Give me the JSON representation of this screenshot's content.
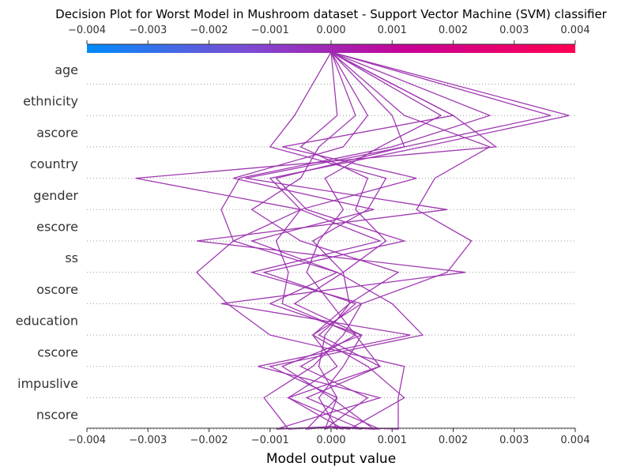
{
  "chart_data": {
    "type": "line",
    "title": "Decision Plot for Worst Model in Mushroom dataset - Support Vector Machine (SVM) classifier",
    "xlabel": "Model output value",
    "ylabel": "",
    "xlim": [
      -0.004,
      0.004
    ],
    "x_ticks": [
      "−0.004",
      "−0.003",
      "−0.002",
      "−0.001",
      "0.000",
      "0.001",
      "0.002",
      "0.003",
      "0.004"
    ],
    "x_tick_values": [
      -0.004,
      -0.003,
      -0.002,
      -0.001,
      0.0,
      0.001,
      0.002,
      0.003,
      0.004
    ],
    "features": [
      "age",
      "ethnicity",
      "ascore",
      "country",
      "gender",
      "escore",
      "ss",
      "oscore",
      "education",
      "cscore",
      "impuslive",
      "nscore"
    ],
    "base_value": 0.0,
    "colorbar": {
      "range": [
        -0.004,
        0.004
      ],
      "colors": [
        "#008bfb",
        "#7d4bd3",
        "#c80095",
        "#ff0051"
      ],
      "orientation": "horizontal"
    },
    "grid": "dotted horizontal lines at feature rows",
    "line_color": "#9b2fae",
    "series_note": "values listed from base (bottom, nscore) to top (age)",
    "series": [
      {
        "values": [
          0.0,
          0.0007,
          0.0,
          -0.0008,
          0.0005,
          -0.001,
          0.0001,
          -0.0016,
          -0.0005,
          -0.001,
          0.0015,
          0.0039
        ]
      },
      {
        "values": [
          0.0,
          -0.0009,
          0.0008,
          -0.0012,
          0.0013,
          -0.0018,
          0.0022,
          -0.0022,
          0.0019,
          -0.0014,
          0.0012,
          0.0036
        ]
      },
      {
        "values": [
          0.0,
          0.0002,
          -0.0007,
          0.0001,
          -0.0003,
          0.0005,
          -0.0013,
          0.0008,
          -0.0005,
          -0.0032,
          0.0027,
          0.002
        ]
      },
      {
        "values": [
          0.0,
          0.0011,
          0.0011,
          0.0012,
          -0.001,
          -0.0017,
          -0.0022,
          -0.0016,
          -0.0018,
          -0.0015,
          0.001,
          0.0026
        ]
      },
      {
        "values": [
          0.0,
          -0.0007,
          -0.0011,
          -0.0003,
          0.0002,
          0.0005,
          0.0019,
          0.0023,
          0.0014,
          0.0017,
          0.0026,
          0.0012
        ]
      },
      {
        "values": [
          0.0,
          0.0008,
          -0.0004,
          0.0008,
          0.0004,
          0.0,
          -0.0004,
          -0.0002,
          0.0002,
          -0.0001,
          0.0008,
          0.0018
        ]
      },
      {
        "values": [
          0.0,
          -0.0001,
          0.0006,
          -0.0005,
          0.0004,
          -0.0008,
          -0.0007,
          -0.0009,
          -0.0005,
          0.0014,
          -0.0008,
          0.002
        ]
      },
      {
        "values": [
          0.0,
          0.0005,
          -0.0007,
          0.0008,
          -0.0002,
          0.0004,
          -0.0011,
          0.0012,
          -0.0004,
          -0.0009,
          0.0012,
          0.001
        ]
      },
      {
        "values": [
          0.0,
          -0.0004,
          0.0001,
          -0.001,
          0.0015,
          0.001,
          0.0001,
          -0.0013,
          0.0007,
          -0.0016,
          0.0002,
          0.0006
        ]
      },
      {
        "values": [
          0.0,
          0.0003,
          0.0012,
          0.0006,
          -0.0003,
          0.0003,
          0.0011,
          -0.0005,
          -0.0013,
          -0.0005,
          -0.0002,
          0.0004
        ]
      },
      {
        "values": [
          0.0,
          0.0001,
          -0.0002,
          0.0002,
          0.0005,
          -0.0006,
          0.0002,
          0.0009,
          0.0004,
          0.0006,
          -0.0005,
          0.0001
        ]
      },
      {
        "values": [
          0.0,
          -0.0001,
          0.0001,
          -0.0002,
          -0.0001,
          0.0003,
          0.0002,
          -0.0003,
          0.0006,
          0.0009,
          -0.001,
          -0.0006
        ]
      }
    ]
  }
}
